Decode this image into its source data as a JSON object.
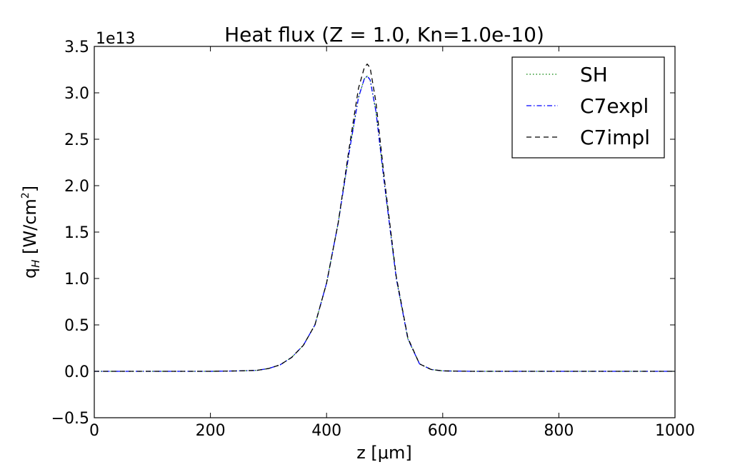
{
  "chart_data": {
    "type": "line",
    "title": "Heat flux (Z = 1.0, Kn=1.0e-10)",
    "xlabel": "z [μm]",
    "ylabel_main": "q",
    "ylabel_sub": "H",
    "ylabel_unit": " [W/cm",
    "ylabel_exp": "2",
    "ylabel_close": "]",
    "y_offset_label": "1e13",
    "xlim": [
      0,
      1000
    ],
    "ylim": [
      -0.5,
      3.5
    ],
    "xticks": [
      0,
      200,
      400,
      600,
      800,
      1000
    ],
    "xtick_labels": [
      "0",
      "200",
      "400",
      "600",
      "800",
      "1000"
    ],
    "yticks": [
      -0.5,
      0.0,
      0.5,
      1.0,
      1.5,
      2.0,
      2.5,
      3.0,
      3.5
    ],
    "ytick_labels": [
      "−0.5",
      "0.0",
      "0.5",
      "1.0",
      "1.5",
      "2.0",
      "2.5",
      "3.0",
      "3.5"
    ],
    "grid": false,
    "legend_position": "top-right",
    "series": [
      {
        "name": "SH",
        "color": "#008000",
        "style": "dotted",
        "x": [
          0,
          100,
          200,
          250,
          280,
          300,
          320,
          340,
          360,
          380,
          400,
          420,
          440,
          455,
          465,
          470,
          475,
          485,
          500,
          520,
          540,
          560,
          580,
          600,
          650,
          700,
          800,
          900,
          1000
        ],
        "y": [
          0.0,
          0.0,
          0.0,
          0.005,
          0.01,
          0.03,
          0.07,
          0.15,
          0.28,
          0.5,
          0.95,
          1.6,
          2.4,
          2.95,
          3.15,
          3.18,
          3.14,
          2.8,
          2.0,
          1.0,
          0.35,
          0.08,
          0.02,
          0.005,
          0.0,
          0.0,
          0.0,
          0.0,
          0.0
        ]
      },
      {
        "name": "C7expl",
        "color": "#0000ff",
        "style": "dashdot",
        "x": [
          0,
          100,
          200,
          250,
          280,
          300,
          320,
          340,
          360,
          380,
          400,
          420,
          440,
          455,
          465,
          470,
          475,
          485,
          500,
          520,
          540,
          560,
          580,
          600,
          650,
          700,
          800,
          900,
          1000
        ],
        "y": [
          0.0,
          0.0,
          0.0,
          0.005,
          0.01,
          0.03,
          0.07,
          0.15,
          0.28,
          0.5,
          0.95,
          1.6,
          2.4,
          2.95,
          3.15,
          3.18,
          3.14,
          2.8,
          2.0,
          1.0,
          0.35,
          0.08,
          0.02,
          0.005,
          0.0,
          0.0,
          0.0,
          0.0,
          0.0
        ]
      },
      {
        "name": "C7impl",
        "color": "#000000",
        "style": "dashed",
        "x": [
          0,
          100,
          200,
          250,
          280,
          300,
          320,
          340,
          360,
          380,
          400,
          420,
          440,
          455,
          465,
          470,
          475,
          485,
          500,
          520,
          540,
          560,
          580,
          600,
          650,
          700,
          800,
          900,
          1000
        ],
        "y": [
          0.0,
          0.0,
          0.0,
          0.005,
          0.01,
          0.03,
          0.07,
          0.15,
          0.28,
          0.5,
          0.95,
          1.6,
          2.45,
          3.05,
          3.27,
          3.31,
          3.27,
          2.9,
          2.05,
          1.02,
          0.36,
          0.08,
          0.02,
          0.005,
          0.0,
          0.0,
          0.0,
          0.0,
          0.0
        ]
      }
    ]
  }
}
